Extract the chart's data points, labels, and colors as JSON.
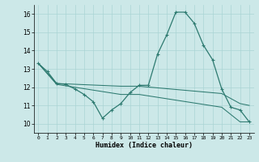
{
  "xlabel": "Humidex (Indice chaleur)",
  "xlim": [
    -0.5,
    23.5
  ],
  "ylim": [
    9.5,
    16.5
  ],
  "yticks": [
    10,
    11,
    12,
    13,
    14,
    15,
    16
  ],
  "xticks": [
    0,
    1,
    2,
    3,
    4,
    5,
    6,
    7,
    8,
    9,
    10,
    11,
    12,
    13,
    14,
    15,
    16,
    17,
    18,
    19,
    20,
    21,
    22,
    23
  ],
  "bg_color": "#cce8e8",
  "grid_color": "#aad4d4",
  "line_color": "#2d7a70",
  "line1_x": [
    0,
    1,
    2,
    3,
    4,
    5,
    6,
    7,
    8,
    9,
    10,
    11,
    12,
    13,
    14,
    15,
    16,
    17,
    18,
    19,
    20,
    21,
    22,
    23
  ],
  "line1_y": [
    13.3,
    12.85,
    12.2,
    12.15,
    11.9,
    11.6,
    11.2,
    10.3,
    10.75,
    11.1,
    11.7,
    12.1,
    12.1,
    13.8,
    14.85,
    16.1,
    16.1,
    15.5,
    14.3,
    13.5,
    11.9,
    10.9,
    10.75,
    10.1
  ],
  "line2_x": [
    0,
    2,
    9,
    11,
    20,
    22,
    23
  ],
  "line2_y": [
    13.3,
    12.2,
    12.05,
    12.05,
    11.65,
    11.1,
    11.0
  ],
  "line3_x": [
    0,
    2,
    9,
    11,
    20,
    22,
    23
  ],
  "line3_y": [
    13.3,
    12.15,
    11.6,
    11.6,
    10.9,
    10.1,
    10.1
  ],
  "marker": "+"
}
